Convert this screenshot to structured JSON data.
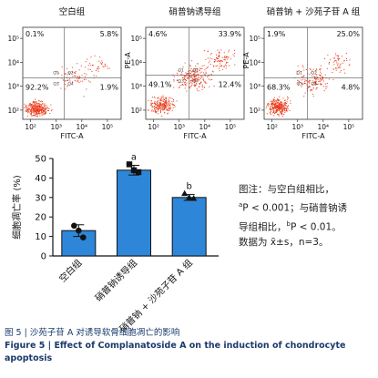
{
  "flow_panels": [
    {
      "title": "空白组",
      "xlabel": "FITC-A",
      "ylabel": "",
      "quadrants": {
        "ul": "0.1%",
        "ur": "5.8%",
        "ll": "92.2%",
        "lr": "1.9%"
      },
      "quadrant_labels": [
        "Q1",
        "Q2",
        "Q3",
        "Q4"
      ],
      "y_ticks": [
        "10²",
        "10³",
        "10⁴",
        "10⁵"
      ],
      "x_ticks": [
        "10²",
        "10³",
        "10⁴",
        "10⁵"
      ]
    },
    {
      "title": "硝普钠诱导组",
      "xlabel": "FITC-A",
      "ylabel": "PE-A",
      "quadrants": {
        "ul": "4.6%",
        "ur": "33.9%",
        "ll": "49.1%",
        "lr": "12.4%"
      },
      "quadrant_labels": [
        "Q1",
        "Q2",
        "Q3",
        "Q4"
      ],
      "y_ticks": [
        "10²",
        "10³",
        "10⁴",
        "10⁵"
      ],
      "x_ticks": [
        "10²",
        "10³",
        "10⁴",
        "10⁵"
      ]
    },
    {
      "title": "硝普钠 + 沙苑子苷 A 组",
      "xlabel": "FITC-A",
      "ylabel": "PE-A",
      "quadrants": {
        "ul": "1.9%",
        "ur": "25.0%",
        "ll": "68.3%",
        "lr": "4.8%"
      },
      "quadrant_labels": [
        "Q1",
        "Q2",
        "Q3",
        "Q4"
      ],
      "y_ticks": [
        "10²",
        "10³",
        "10⁴",
        "10⁵"
      ],
      "x_ticks": [
        "10²",
        "10³",
        "10⁴",
        "10⁵"
      ]
    }
  ],
  "chart_data": {
    "type": "bar",
    "categories": [
      "空白组",
      "硝普钠诱导组",
      "硝普钠 + 沙苑子苷 A 组"
    ],
    "values": [
      13,
      44,
      30
    ],
    "errors": [
      3,
      2.5,
      1.5
    ],
    "points": [
      [
        15.5,
        13,
        9.5
      ],
      [
        47,
        44,
        43
      ],
      [
        32,
        30,
        29.5
      ]
    ],
    "sig": [
      "",
      "a",
      "b"
    ],
    "ylabel": "细胞凋亡率 (%)",
    "ylim": [
      0,
      50
    ],
    "yticks": [
      0,
      10,
      20,
      30,
      40,
      50
    ],
    "bar_color": "#2e86d8",
    "point_shapes": [
      "circle",
      "square",
      "triangle"
    ]
  },
  "note": {
    "line1": "图注：与空白组相比，",
    "line2_sup": "a",
    "line2": "P < 0.001；与硝普钠诱",
    "line3_pre": "导组相比，",
    "line3_sup": "b",
    "line3": "P < 0.01。",
    "line4": "数据为 x̄±s，n=3。"
  },
  "caption": {
    "cn": "图 5  |  沙苑子苷 A 对诱导软骨细胞凋亡的影响",
    "en": "Figure 5   |   Effect of Complanatoside A on the induction of chondrocyte apoptosis"
  }
}
